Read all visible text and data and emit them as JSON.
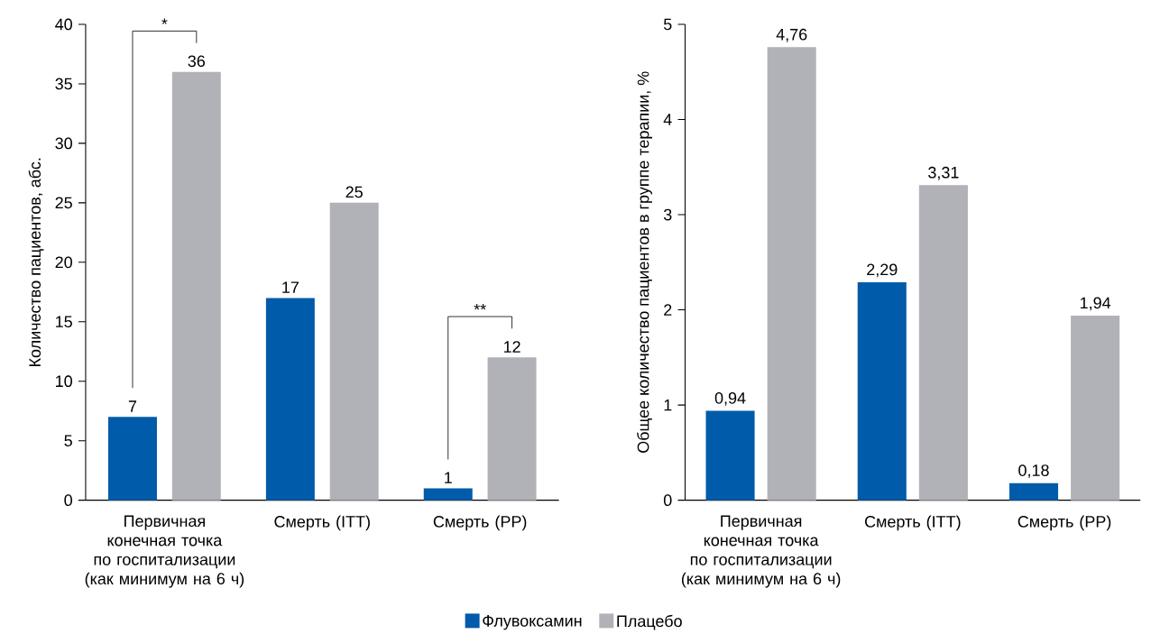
{
  "chart_data": [
    {
      "type": "bar",
      "ylabel": "Количество пациентов, абс.",
      "categories": [
        "Первичная конечная точка по госпитализации (как минимум на 6 ч)",
        "Смерть (ITT)",
        "Смерть (PP)"
      ],
      "series": [
        {
          "name": "Флувоксамин",
          "color": "#005baa",
          "values": [
            7,
            17,
            1
          ],
          "value_labels": [
            "7",
            "17",
            "1"
          ]
        },
        {
          "name": "Плацебо",
          "color": "#b1b1b8",
          "values": [
            36,
            25,
            12
          ],
          "value_labels": [
            "36",
            "25",
            "12"
          ]
        }
      ],
      "ylim": [
        0,
        40
      ],
      "yticks": [
        0,
        5,
        10,
        15,
        20,
        25,
        30,
        35,
        40
      ],
      "legend": "bottom",
      "annotations": [
        "*",
        "**"
      ]
    },
    {
      "type": "bar",
      "ylabel": "Общее количество пациентов в группе терапии, %",
      "categories": [
        "Первичная конечная точка по госпитализации (как минимум на 6 ч)",
        "Смерть (ITT)",
        "Смерть (PP)"
      ],
      "series": [
        {
          "color": "#005baa",
          "values": [
            0.94,
            2.29,
            0.18
          ],
          "value_labels": [
            "0,94",
            "2,29",
            "0,18"
          ]
        },
        {
          "color": "#b1b1b8",
          "values": [
            4.76,
            3.31,
            1.94
          ],
          "value_labels": [
            "4,76",
            "3,31",
            "1,94"
          ]
        }
      ],
      "ylim": [
        0,
        5
      ],
      "yticks": [
        0,
        1,
        2,
        3,
        4,
        5
      ]
    }
  ]
}
